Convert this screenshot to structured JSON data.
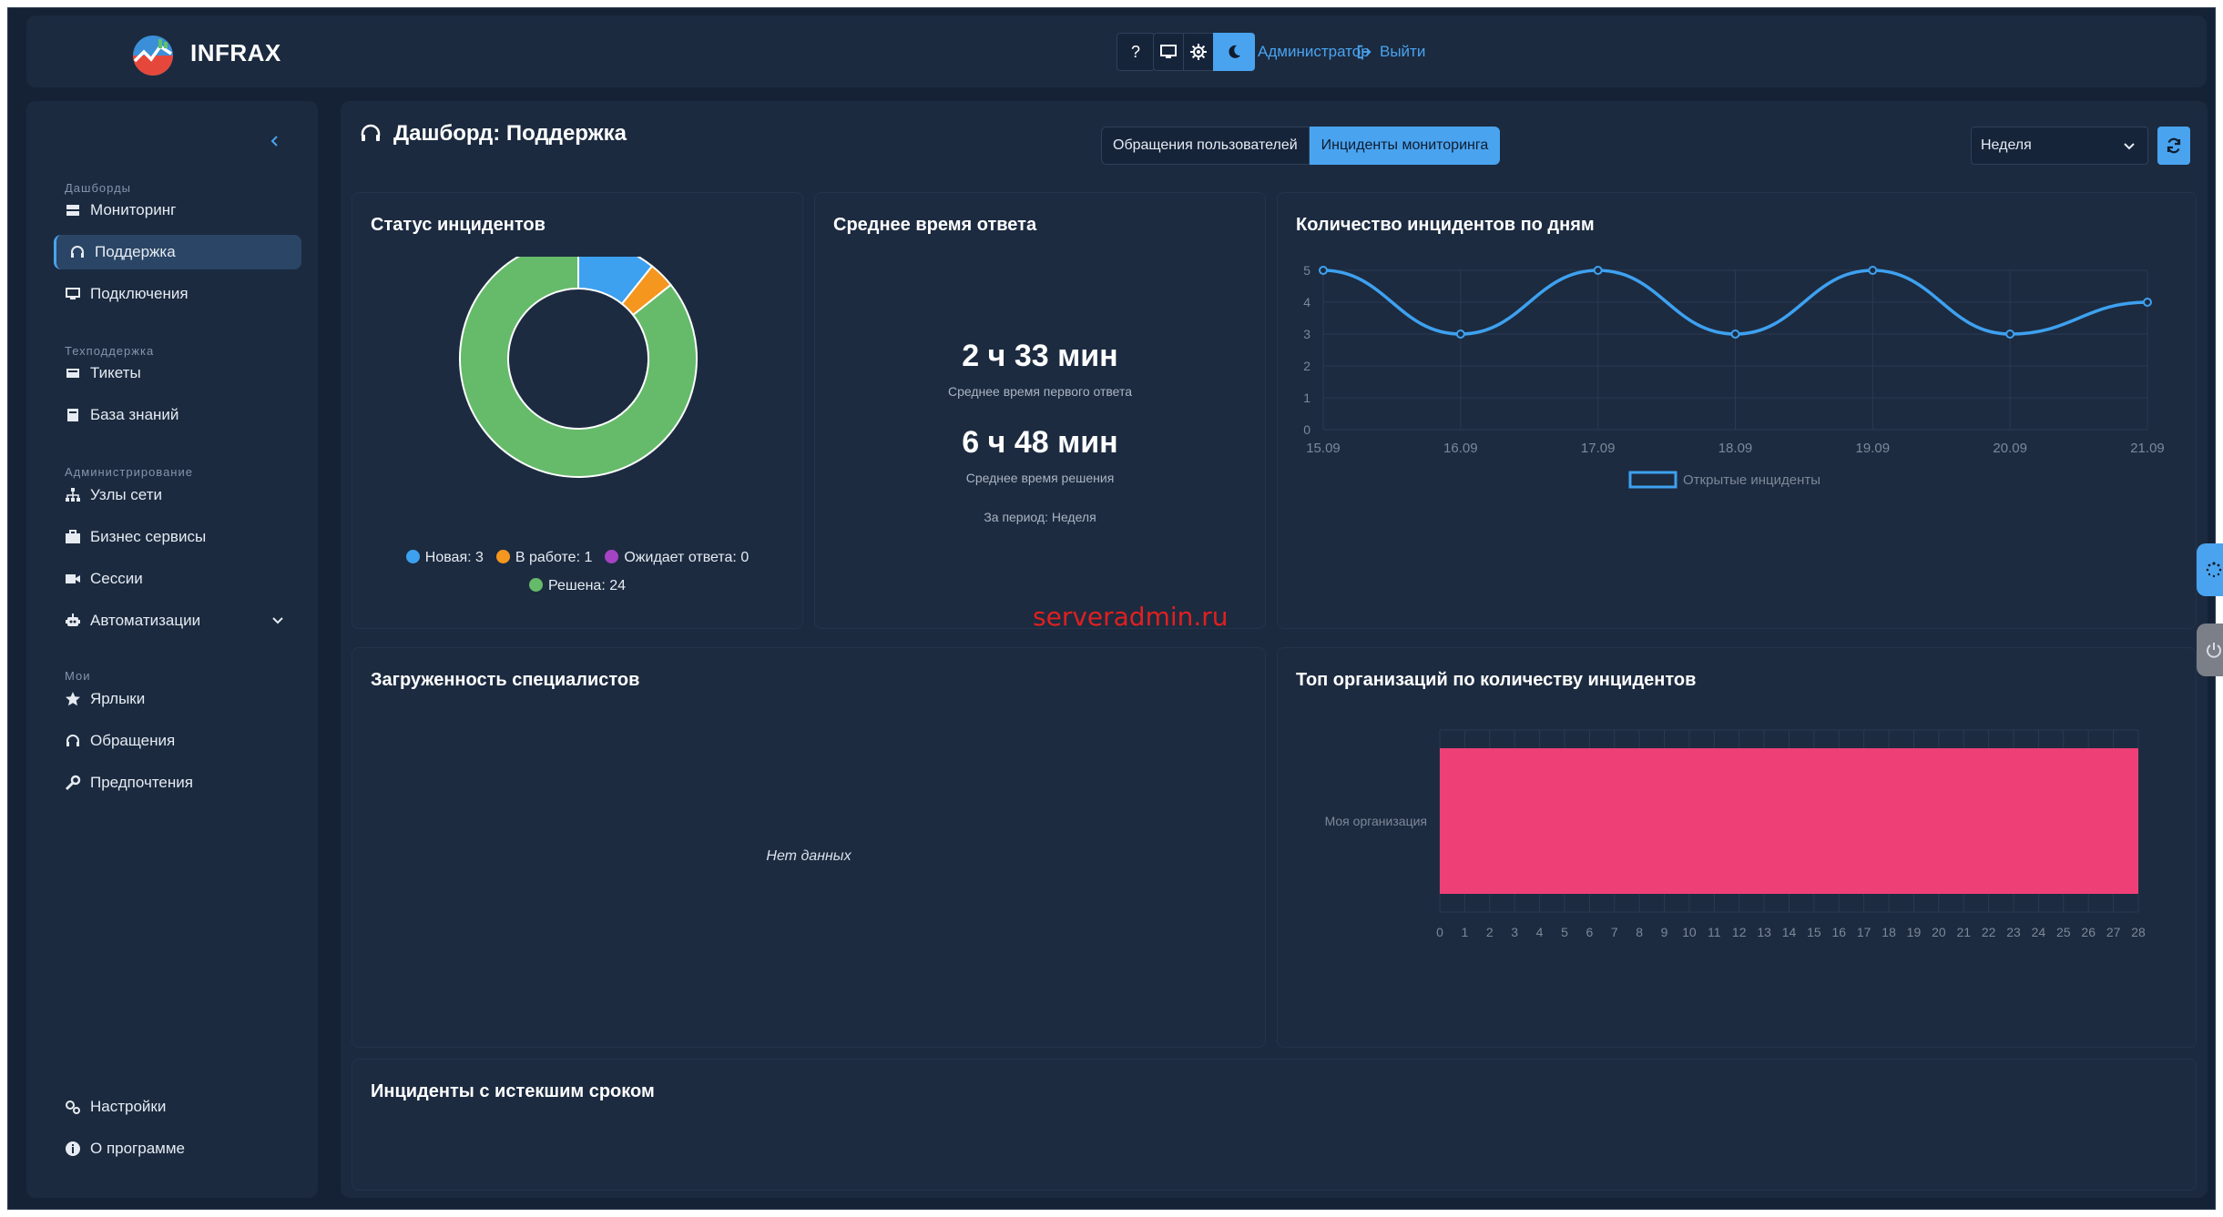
{
  "app": {
    "brand": "INFRAX"
  },
  "header": {
    "help_label": "?",
    "admin_label": "Администратор",
    "logout_label": "Выйти"
  },
  "sidebar": {
    "sections": [
      {
        "label": "Дашборды"
      },
      {
        "label": "Техподдержка"
      },
      {
        "label": "Администрирование"
      },
      {
        "label": "Мои"
      }
    ],
    "items": [
      {
        "label": "Мониторинг",
        "icon": "server-icon"
      },
      {
        "label": "Поддержка",
        "icon": "headset-icon"
      },
      {
        "label": "Подключения",
        "icon": "monitor-icon"
      },
      {
        "label": "Тикеты",
        "icon": "ticket-icon"
      },
      {
        "label": "База знаний",
        "icon": "book-icon"
      },
      {
        "label": "Узлы сети",
        "icon": "network-icon"
      },
      {
        "label": "Бизнес сервисы",
        "icon": "briefcase-icon"
      },
      {
        "label": "Сессии",
        "icon": "video-icon"
      },
      {
        "label": "Автоматизации",
        "icon": "robot-icon"
      },
      {
        "label": "Ярлыки",
        "icon": "star-icon"
      },
      {
        "label": "Обращения",
        "icon": "headset-icon"
      },
      {
        "label": "Предпочтения",
        "icon": "wrench-icon"
      },
      {
        "label": "Настройки",
        "icon": "gears-icon"
      },
      {
        "label": "О программе",
        "icon": "info-icon"
      }
    ]
  },
  "main": {
    "title": "Дашборд: Поддержка",
    "tabs": [
      {
        "label": "Обращения пользователей"
      },
      {
        "label": "Инциденты мониторинга"
      }
    ],
    "period_select": "Неделя"
  },
  "cards": {
    "status": {
      "title": "Статус инцидентов",
      "legend": [
        "Новая: 3",
        "В работе: 1",
        "Ожидает ответа: 0",
        "Решена: 24"
      ]
    },
    "response": {
      "title": "Среднее время ответа",
      "first_value": "2 ч 33 мин",
      "first_label": "Среднее время первого ответа",
      "resolve_value": "6 ч 48 мин",
      "resolve_label": "Среднее время решения",
      "period_note": "За период: Неделя"
    },
    "daily": {
      "title": "Количество инцидентов по дням"
    },
    "workload": {
      "title": "Загруженность специалистов",
      "empty": "Нет данных"
    },
    "top_orgs": {
      "title": "Топ организаций по количеству инцидентов"
    },
    "expired": {
      "title": "Инциденты с истекшим сроком"
    }
  },
  "watermark": "serveradmin.ru",
  "colors": {
    "accent": "#4aa3ef",
    "status_new": "#3ea1f0",
    "status_progress": "#f5961f",
    "status_waiting": "#a444c4",
    "status_resolved": "#66bb6a",
    "bar": "#ee3f77"
  },
  "chart_data": [
    {
      "type": "pie",
      "labels": [
        "Новая",
        "В работе",
        "Ожидает ответа",
        "Решена"
      ],
      "values": [
        3,
        1,
        0,
        24
      ],
      "colors": [
        "#3ea1f0",
        "#f5961f",
        "#a444c4",
        "#66bb6a"
      ],
      "legend": "bottom"
    },
    {
      "type": "line",
      "x": [
        "15.09",
        "16.09",
        "17.09",
        "18.09",
        "19.09",
        "20.09",
        "21.09"
      ],
      "series": [
        {
          "name": "Открытые инциденты",
          "values": [
            5,
            3,
            5,
            3,
            5,
            3,
            4
          ]
        }
      ],
      "ylim": [
        0,
        5
      ],
      "yticks": [
        0,
        1,
        2,
        3,
        4,
        5
      ],
      "grid": true,
      "legend": "bottom"
    },
    {
      "type": "bar",
      "orientation": "horizontal",
      "categories": [
        "Моя организация"
      ],
      "values": [
        28
      ],
      "xlim": [
        0,
        28
      ],
      "xticks": [
        0,
        1,
        2,
        3,
        4,
        5,
        6,
        7,
        8,
        9,
        10,
        11,
        12,
        13,
        14,
        15,
        16,
        17,
        18,
        19,
        20,
        21,
        22,
        23,
        24,
        25,
        26,
        27,
        28
      ],
      "grid": true
    }
  ]
}
